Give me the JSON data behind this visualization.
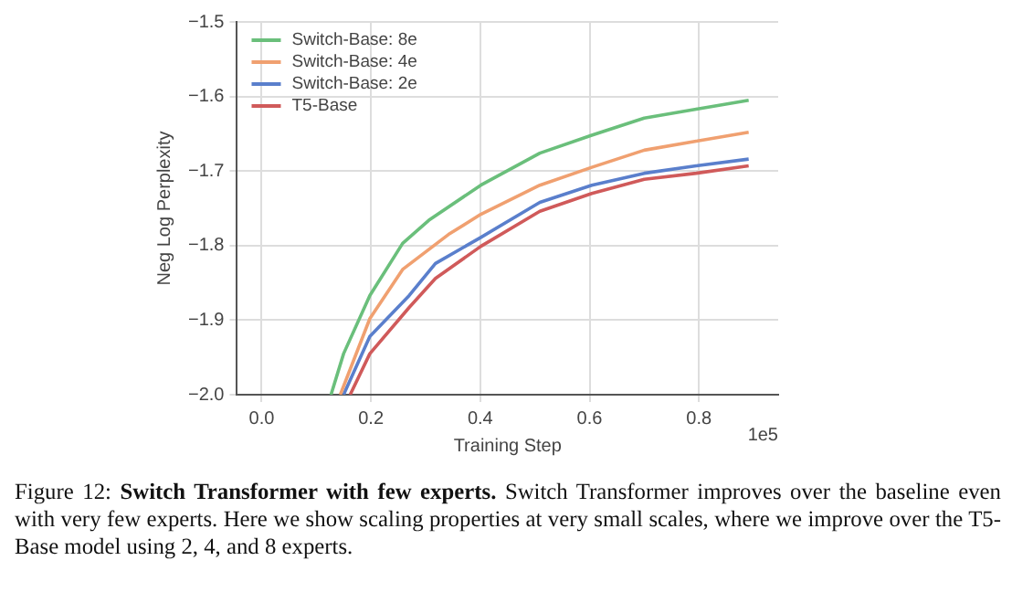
{
  "chart_data": {
    "type": "line",
    "xlabel": "Training Step",
    "ylabel": "Neg Log Perplexity",
    "xlim": [
      -0.045,
      0.945
    ],
    "ylim": [
      -2.0,
      -1.5
    ],
    "xticks": [
      {
        "value": 0,
        "label": "0.0"
      },
      0.2,
      0.4,
      0.6,
      0.8
    ],
    "yticks": [
      {
        "value": -2.0,
        "label": "−2.0"
      },
      {
        "value": -1.9,
        "label": "−1.9"
      },
      {
        "value": -1.8,
        "label": "−1.8"
      },
      {
        "value": -1.7,
        "label": "−1.7"
      },
      {
        "value": -1.6,
        "label": "−1.6"
      },
      {
        "value": -1.5,
        "label": "−1.5"
      }
    ],
    "grid": true,
    "legend": "top left",
    "series": [
      {
        "name": "Switch-Base: 8e",
        "color": "#6abf7b",
        "x": [
          0.127,
          0.15,
          0.198,
          0.258,
          0.306,
          0.401,
          0.509,
          0.604,
          0.7,
          0.795,
          0.891
        ],
        "values": [
          -2.0,
          -1.945,
          -1.867,
          -1.797,
          -1.766,
          -1.719,
          -1.676,
          -1.652,
          -1.629,
          -1.617,
          -1.605
        ]
      },
      {
        "name": "Switch-Base: 4e",
        "color": "#f0a070",
        "x": [
          0.144,
          0.198,
          0.258,
          0.342,
          0.401,
          0.509,
          0.604,
          0.7,
          0.795,
          0.891
        ],
        "values": [
          -2.0,
          -1.898,
          -1.832,
          -1.785,
          -1.758,
          -1.719,
          -1.695,
          -1.672,
          -1.66,
          -1.648
        ]
      },
      {
        "name": "Switch-Base: 2e",
        "color": "#5a7fcc",
        "x": [
          0.15,
          0.198,
          0.27,
          0.318,
          0.401,
          0.509,
          0.604,
          0.7,
          0.795,
          0.891
        ],
        "values": [
          -2.0,
          -1.922,
          -1.867,
          -1.824,
          -1.789,
          -1.742,
          -1.719,
          -1.703,
          -1.693,
          -1.684
        ]
      },
      {
        "name": "T5-Base",
        "color": "#d05a5a",
        "x": [
          0.162,
          0.198,
          0.27,
          0.318,
          0.401,
          0.509,
          0.604,
          0.7,
          0.795,
          0.891
        ],
        "values": [
          -2.0,
          -1.945,
          -1.883,
          -1.844,
          -1.801,
          -1.754,
          -1.73,
          -1.711,
          -1.703,
          -1.693
        ]
      }
    ],
    "annotations": [
      "1e5",
      "Figure 12:",
      "Switch Transformer with few experts.",
      "Switch Transformer improves over the baseline even with very few experts. Here we show scaling properties at very small scales, where we improve over the T5-Base model using 2, 4, and 8 experts."
    ]
  }
}
